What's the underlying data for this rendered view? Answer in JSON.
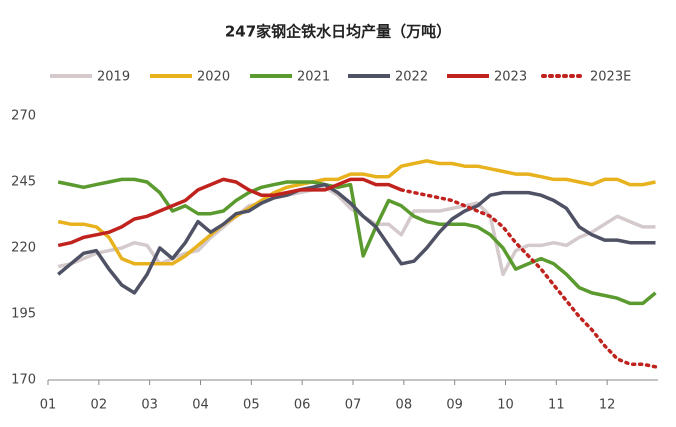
{
  "chart_data": {
    "type": "line",
    "title": "247家钢企铁水日均产量（万吨）",
    "x": [
      1.2,
      1.45,
      1.7,
      1.95,
      2.2,
      2.45,
      2.7,
      2.95,
      3.2,
      3.45,
      3.7,
      3.95,
      4.2,
      4.45,
      4.7,
      4.95,
      5.2,
      5.45,
      5.7,
      5.95,
      6.2,
      6.45,
      6.7,
      6.95,
      7.2,
      7.45,
      7.7,
      7.95,
      8.2,
      8.45,
      8.7,
      8.95,
      9.2,
      9.45,
      9.7,
      9.95,
      10.2,
      10.45,
      10.7,
      10.95,
      11.2,
      11.45,
      11.7,
      11.95,
      12.2,
      12.45,
      12.7,
      12.95
    ],
    "xlim": [
      1,
      13
    ],
    "xticks": [
      {
        "value": 1,
        "label": "01"
      },
      {
        "value": 2,
        "label": "02"
      },
      {
        "value": 3,
        "label": "03"
      },
      {
        "value": 4,
        "label": "04"
      },
      {
        "value": 5,
        "label": "05"
      },
      {
        "value": 6,
        "label": "06"
      },
      {
        "value": 7,
        "label": "07"
      },
      {
        "value": 8,
        "label": "08"
      },
      {
        "value": 9,
        "label": "09"
      },
      {
        "value": 10,
        "label": "10"
      },
      {
        "value": 11,
        "label": "11"
      },
      {
        "value": 12,
        "label": "12"
      }
    ],
    "ylim": [
      170,
      270
    ],
    "yticks": [
      170,
      195,
      220,
      245,
      270
    ],
    "grid": false,
    "legend": "top",
    "series": [
      {
        "name": "2019",
        "color": "#d4c9cb",
        "style": "solid",
        "values": [
          213,
          214,
          216,
          218,
          219,
          220,
          222,
          221,
          214,
          216,
          218,
          219,
          224,
          228,
          232,
          236,
          237,
          239,
          240,
          241,
          242,
          243,
          240,
          235,
          232,
          229,
          229,
          225,
          234,
          234,
          234,
          235,
          236,
          237,
          232,
          210,
          219,
          221,
          221,
          222,
          221,
          224,
          226,
          229,
          232,
          230,
          228,
          228
        ]
      },
      {
        "name": "2020",
        "color": "#e8b21e",
        "style": "solid",
        "values": [
          230,
          229,
          229,
          228,
          224,
          216,
          214,
          214,
          214,
          214,
          217,
          221,
          225,
          229,
          232,
          235,
          238,
          241,
          243,
          244,
          245,
          246,
          246,
          248,
          248,
          247,
          247,
          251,
          252,
          253,
          252,
          252,
          251,
          251,
          250,
          249,
          248,
          248,
          247,
          246,
          246,
          245,
          244,
          246,
          246,
          244,
          244,
          245
        ]
      },
      {
        "name": "2021",
        "color": "#5a9a2e",
        "style": "solid",
        "values": [
          245,
          244,
          243,
          244,
          245,
          246,
          246,
          245,
          241,
          234,
          236,
          233,
          233,
          234,
          238,
          241,
          243,
          244,
          245,
          245,
          245,
          244,
          243,
          244,
          217,
          228,
          238,
          236,
          232,
          230,
          229,
          229,
          229,
          228,
          225,
          220,
          212,
          214,
          216,
          214,
          210,
          205,
          203,
          202,
          201,
          199,
          199,
          203
        ]
      },
      {
        "name": "2022",
        "color": "#4f5264",
        "style": "solid",
        "values": [
          210,
          214,
          218,
          219,
          212,
          206,
          203,
          210,
          220,
          216,
          222,
          230,
          226,
          229,
          233,
          234,
          237,
          239,
          240,
          242,
          243,
          244,
          241,
          237,
          232,
          228,
          221,
          214,
          215,
          220,
          226,
          231,
          234,
          236,
          240,
          241,
          241,
          241,
          240,
          238,
          235,
          228,
          225,
          223,
          223,
          222,
          222,
          222
        ]
      },
      {
        "name": "2023",
        "color": "#c0231e",
        "style": "solid",
        "values": [
          221,
          222,
          224,
          225,
          226,
          228,
          231,
          232,
          234,
          236,
          238,
          242,
          244,
          246,
          245,
          242,
          240,
          240,
          241,
          242,
          242,
          242,
          244,
          246,
          246,
          244,
          244,
          242,
          null,
          null,
          null,
          null,
          null,
          null,
          null,
          null,
          null,
          null,
          null,
          null,
          null,
          null,
          null,
          null,
          null,
          null,
          null,
          null
        ]
      },
      {
        "name": "2023E",
        "color": "#c0231e",
        "style": "dotted",
        "values": [
          null,
          null,
          null,
          null,
          null,
          null,
          null,
          null,
          null,
          null,
          null,
          null,
          null,
          null,
          null,
          null,
          null,
          null,
          null,
          null,
          null,
          null,
          null,
          null,
          null,
          null,
          null,
          242,
          241,
          240,
          239,
          238,
          236,
          234,
          232,
          228,
          222,
          217,
          212,
          206,
          200,
          194,
          189,
          183,
          178,
          176,
          176,
          175
        ]
      }
    ]
  }
}
